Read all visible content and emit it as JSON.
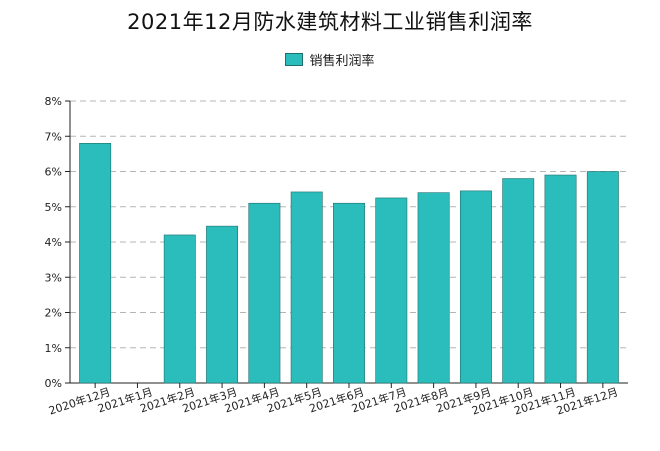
{
  "chart_data": {
    "type": "bar",
    "title": "2021年12月防水建筑材料工业销售利润率",
    "categories": [
      "2020年12月",
      "2021年1月",
      "2021年2月",
      "2021年3月",
      "2021年4月",
      "2021年5月",
      "2021年6月",
      "2021年7月",
      "2021年8月",
      "2021年9月",
      "2021年10月",
      "2021年11月",
      "2021年12月"
    ],
    "series": [
      {
        "name": "销售利润率",
        "values": [
          6.8,
          null,
          4.2,
          4.45,
          5.1,
          5.42,
          5.1,
          5.25,
          5.4,
          5.45,
          5.8,
          5.9,
          6.0
        ]
      }
    ],
    "ylim": [
      0,
      8
    ],
    "y_ticks": [
      "0%",
      "1%",
      "2%",
      "3%",
      "4%",
      "5%",
      "6%",
      "7%",
      "8%"
    ],
    "grid": true,
    "legend_position": "top-center",
    "bar_color": "#2bbdbb",
    "bar_edge_color": "#1f6f6d"
  }
}
